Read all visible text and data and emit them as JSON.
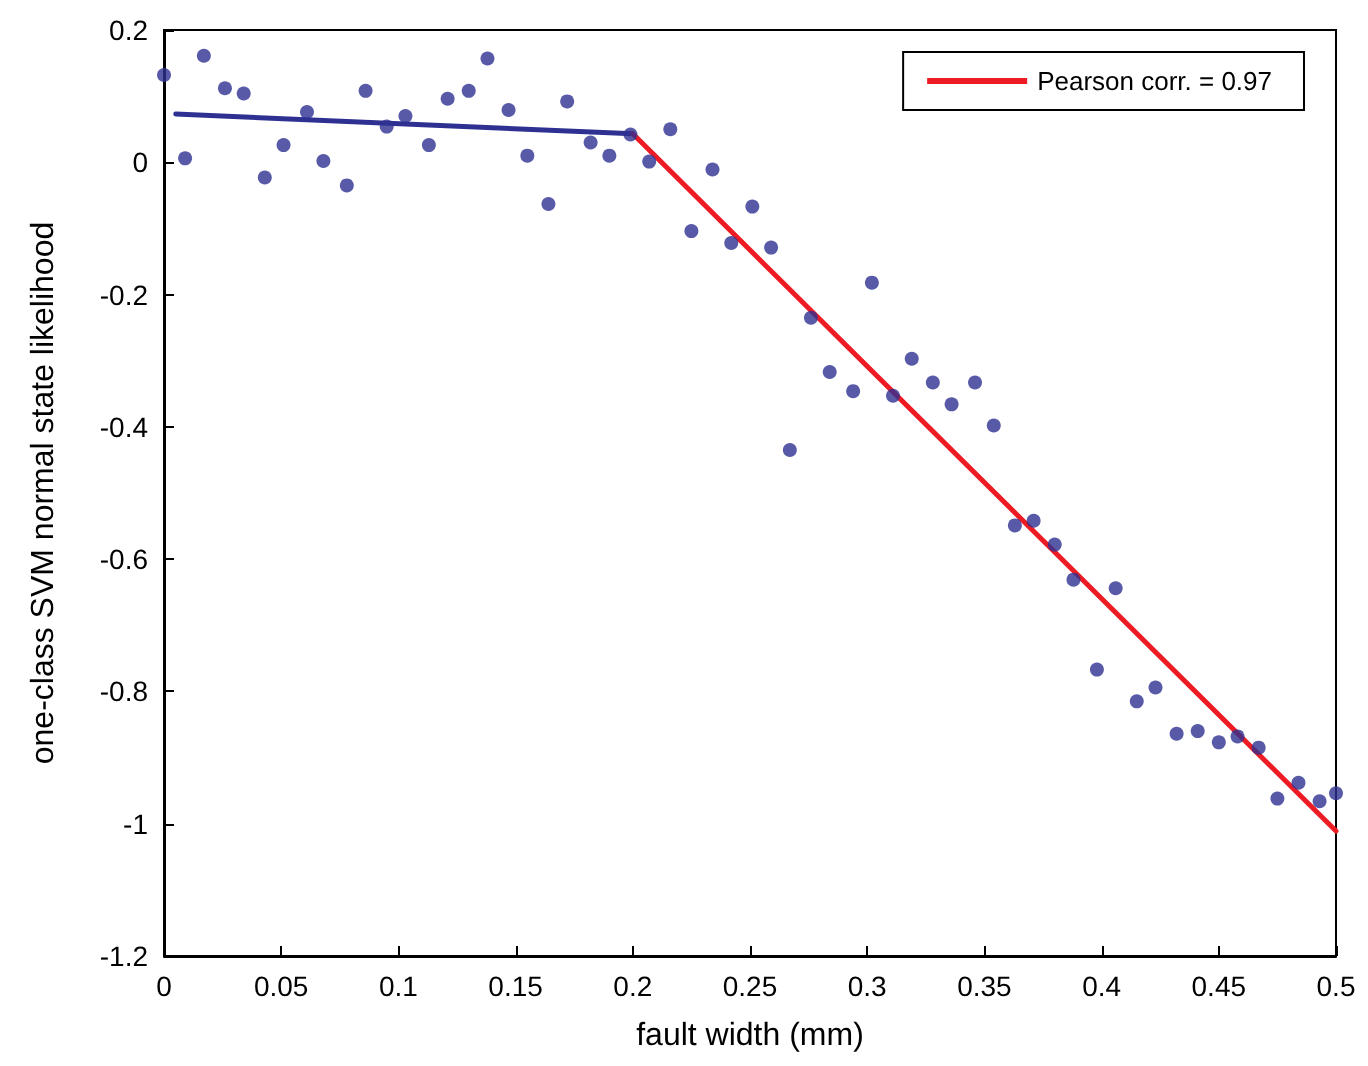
{
  "chart_data": {
    "type": "scatter",
    "xlabel": "fault width (mm)",
    "ylabel": "one-class SVM normal state likelihood",
    "xlim": [
      0,
      0.5
    ],
    "xticks": [
      0,
      0.05,
      0.1,
      0.15,
      0.2,
      0.25,
      0.3,
      0.35,
      0.4,
      0.45,
      0.5
    ],
    "ylim": [
      -1.2,
      0.2
    ],
    "yticks": [
      -1.2,
      -1,
      -0.8,
      -0.6,
      -0.4,
      -0.2,
      0,
      0.2
    ],
    "grid": false,
    "legend": "top right",
    "marker": "circle",
    "series": [
      {
        "color": "#2e3192",
        "x": [
          0.0,
          0.009,
          0.017,
          0.026,
          0.034,
          0.043,
          0.051,
          0.061,
          0.068,
          0.078,
          0.086,
          0.095,
          0.103,
          0.113,
          0.121,
          0.13,
          0.138,
          0.147,
          0.155,
          0.164,
          0.172,
          0.182,
          0.19,
          0.199,
          0.207,
          0.216,
          0.225,
          0.234,
          0.242,
          0.251,
          0.259,
          0.267,
          0.276,
          0.284,
          0.294,
          0.302,
          0.311,
          0.319,
          0.328,
          0.336,
          0.346,
          0.354,
          0.363,
          0.371,
          0.38,
          0.388,
          0.398,
          0.406,
          0.415,
          0.423,
          0.432,
          0.441,
          0.45,
          0.458,
          0.467,
          0.475,
          0.484,
          0.493,
          0.5
        ],
        "values": [
          0.132,
          0.006,
          0.161,
          0.112,
          0.104,
          -0.023,
          0.026,
          0.076,
          0.002,
          -0.035,
          0.108,
          0.054,
          0.07,
          0.026,
          0.096,
          0.108,
          0.157,
          0.079,
          0.01,
          -0.063,
          0.092,
          0.03,
          0.01,
          0.042,
          0.001,
          0.05,
          -0.104,
          -0.011,
          -0.122,
          -0.067,
          -0.129,
          -0.435,
          -0.235,
          -0.317,
          -0.346,
          -0.182,
          -0.353,
          -0.297,
          -0.333,
          -0.366,
          -0.333,
          -0.398,
          -0.549,
          -0.542,
          -0.578,
          -0.631,
          -0.767,
          -0.644,
          -0.815,
          -0.794,
          -0.864,
          -0.86,
          -0.877,
          -0.868,
          -0.885,
          -0.962,
          -0.938,
          -0.966,
          -0.954
        ]
      },
      {
        "type": "line",
        "marker": "none",
        "color": "#2e3192",
        "x": [
          0.005,
          0.2
        ],
        "values": [
          0.073,
          0.043
        ]
      },
      {
        "type": "line",
        "marker": "none",
        "name": "Pearson corr. = 0.97",
        "color": "#ed1c24",
        "x": [
          0.2,
          0.5
        ],
        "values": [
          0.043,
          -1.011
        ]
      }
    ]
  }
}
